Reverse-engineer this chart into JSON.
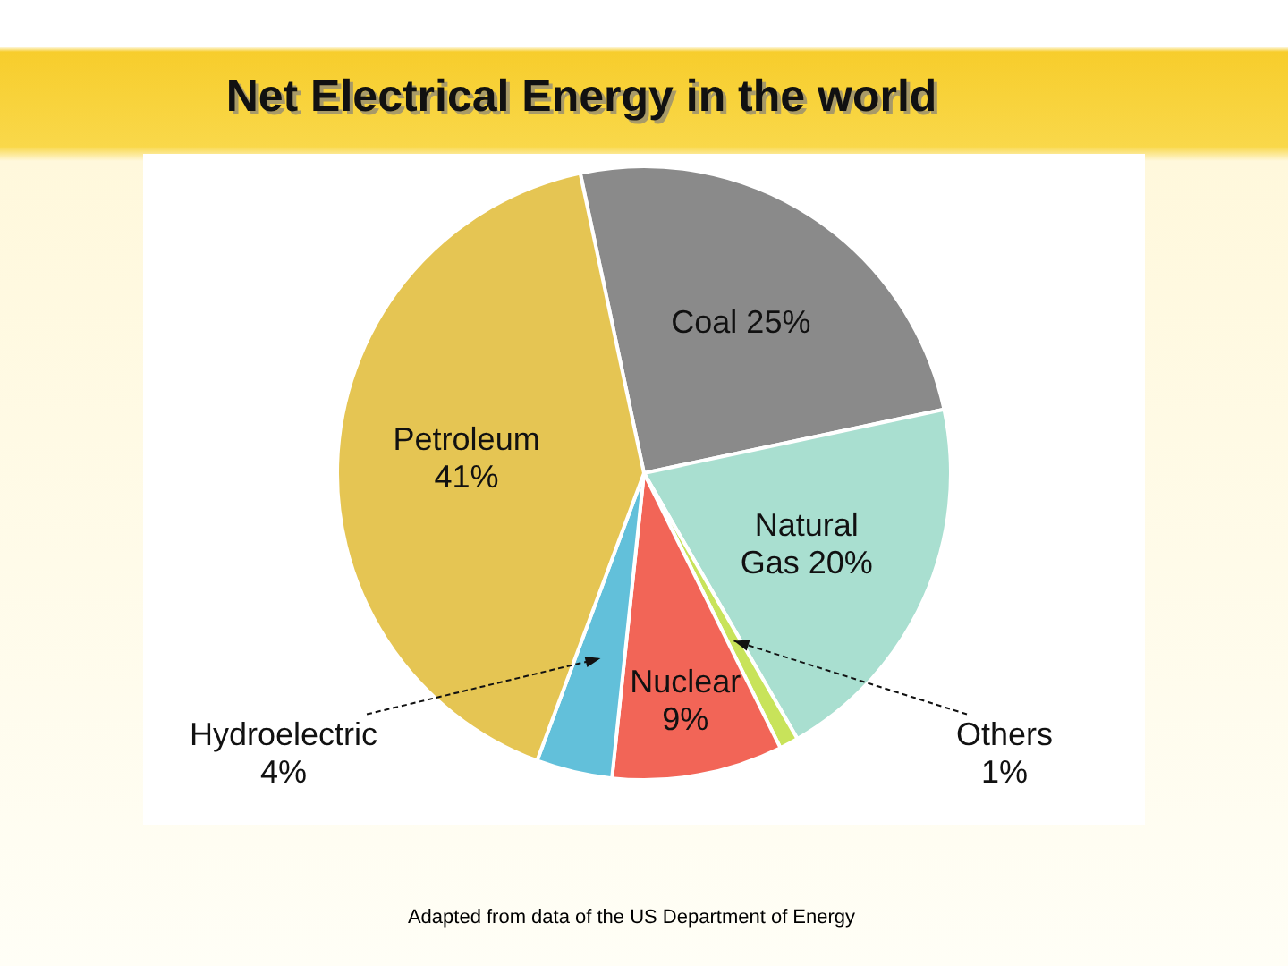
{
  "chart_data": {
    "type": "pie",
    "title": "Net Electrical Energy in the world",
    "categories": [
      "Coal",
      "Natural Gas",
      "Others",
      "Nuclear",
      "Hydroelectric",
      "Petroleum"
    ],
    "values": [
      25,
      20,
      1,
      9,
      4,
      41
    ],
    "colors": [
      "#8a8a8a",
      "#a9dfd0",
      "#c8e35a",
      "#f26557",
      "#62c0da",
      "#e5c553"
    ],
    "value_labels": [
      "25%",
      "20%",
      "1%",
      "9%",
      "4%",
      "41%"
    ],
    "annotations": [
      "Adapted from data of the US Department of Energy"
    ]
  }
}
